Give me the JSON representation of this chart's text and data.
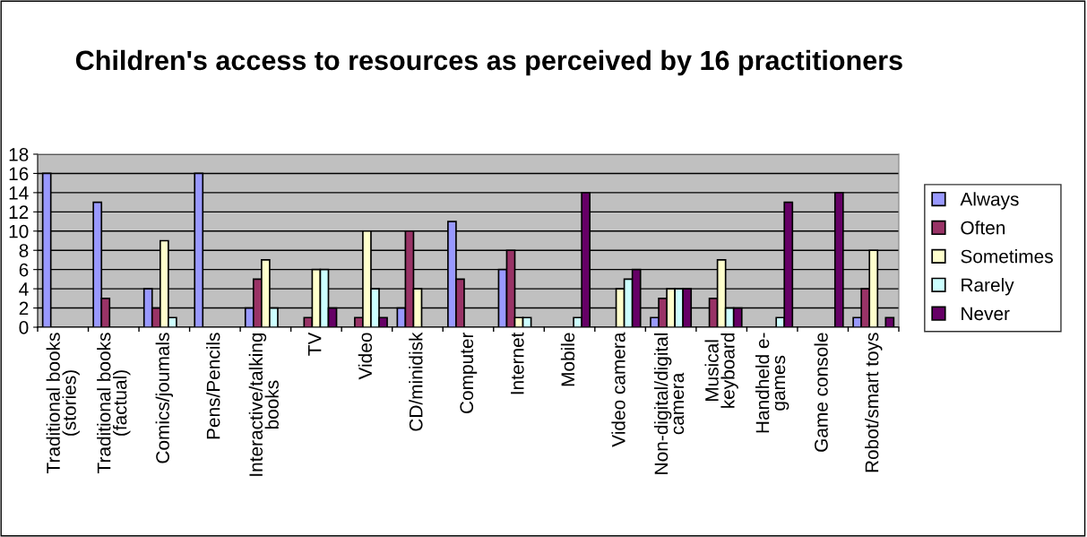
{
  "chart_data": {
    "type": "bar",
    "title": "Children's access to resources as perceived by 16 practitioners",
    "categories": [
      "Traditional books\n(stories)",
      "Traditional books\n(factual)",
      "Comics/joumals",
      "Pens/Pencils",
      "Interactive/talking\nbooks",
      "TV",
      "Video",
      "CD/minidisk",
      "Computer",
      "Internet",
      "Mobile",
      "Video camera",
      "Non-digital/digital\ncamera",
      "Musical\nkeyboard",
      "Handheld e-\ngames",
      "Game console",
      "Robot/smart toys"
    ],
    "series": [
      {
        "name": "Always",
        "color": "#9999ff",
        "values": [
          16,
          13,
          4,
          16,
          2,
          null,
          null,
          2,
          11,
          6,
          null,
          null,
          1,
          null,
          null,
          null,
          1
        ]
      },
      {
        "name": "Often",
        "color": "#993366",
        "values": [
          null,
          3,
          2,
          null,
          5,
          1,
          1,
          10,
          5,
          8,
          null,
          null,
          3,
          3,
          null,
          null,
          4
        ]
      },
      {
        "name": "Sometimes",
        "color": "#ffffcc",
        "values": [
          null,
          null,
          9,
          null,
          7,
          6,
          10,
          4,
          null,
          1,
          null,
          4,
          4,
          7,
          null,
          null,
          8
        ]
      },
      {
        "name": "Rarely",
        "color": "#ccffff",
        "values": [
          null,
          null,
          1,
          null,
          2,
          6,
          4,
          null,
          null,
          1,
          1,
          5,
          4,
          2,
          1,
          null,
          null
        ]
      },
      {
        "name": "Never",
        "color": "#660066",
        "values": [
          null,
          null,
          null,
          null,
          null,
          2,
          1,
          null,
          null,
          null,
          14,
          6,
          4,
          2,
          13,
          14,
          1
        ]
      }
    ],
    "ylim": [
      0,
      18
    ],
    "yticks": [
      0,
      2,
      4,
      6,
      8,
      10,
      12,
      14,
      16,
      18
    ],
    "grid": "y",
    "legend": "right"
  }
}
